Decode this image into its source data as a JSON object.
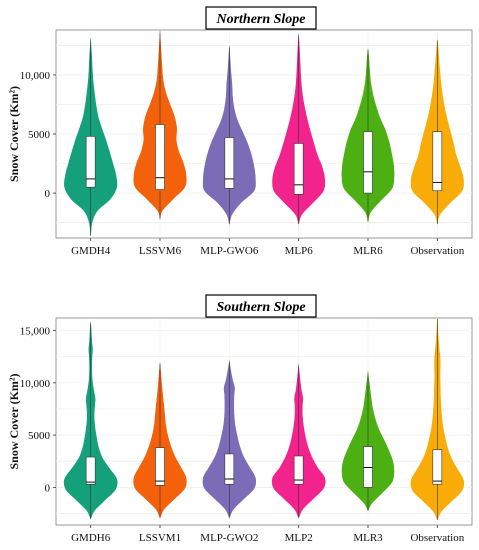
{
  "chart_data": [
    {
      "type": "violin",
      "title": "Northern Slope",
      "ylabel": "Snow Cover (Km²)",
      "ylim": [
        -3800,
        13800
      ],
      "yticks": [
        0,
        5000,
        10000
      ],
      "ytick_labels": [
        "0",
        "5000",
        "10,000"
      ],
      "grid": true,
      "categories": [
        "GMDH4",
        "LSSVM6",
        "MLP-GWO6",
        "MLP6",
        "MLR6",
        "Observation"
      ],
      "colors": [
        "#14a07a",
        "#f4610b",
        "#7b6cb8",
        "#f2238c",
        "#4caf12",
        "#f9ac08"
      ],
      "violins": [
        {
          "name": "GMDH4",
          "min": -3600,
          "max": 12900,
          "q1": 500,
          "median": 1200,
          "q3": 4800,
          "profile": [
            [
              -3600,
              0
            ],
            [
              -2500,
              0.05
            ],
            [
              -1500,
              0.25
            ],
            [
              -500,
              0.75
            ],
            [
              500,
              1.0
            ],
            [
              1500,
              0.97
            ],
            [
              2500,
              0.85
            ],
            [
              3500,
              0.72
            ],
            [
              4500,
              0.58
            ],
            [
              5500,
              0.42
            ],
            [
              6500,
              0.28
            ],
            [
              7500,
              0.2
            ],
            [
              8500,
              0.14
            ],
            [
              9500,
              0.09
            ],
            [
              10500,
              0.06
            ],
            [
              11500,
              0.04
            ],
            [
              12900,
              0
            ]
          ]
        },
        {
          "name": "LSSVM6",
          "min": -2200,
          "max": 13500,
          "q1": 300,
          "median": 1300,
          "q3": 5800,
          "profile": [
            [
              -2200,
              0
            ],
            [
              -1500,
              0.08
            ],
            [
              -500,
              0.5
            ],
            [
              500,
              0.95
            ],
            [
              1500,
              1.0
            ],
            [
              2500,
              0.9
            ],
            [
              3500,
              0.72
            ],
            [
              4500,
              0.62
            ],
            [
              5500,
              0.64
            ],
            [
              6500,
              0.55
            ],
            [
              7500,
              0.38
            ],
            [
              8500,
              0.22
            ],
            [
              9500,
              0.12
            ],
            [
              10500,
              0.08
            ],
            [
              11500,
              0.05
            ],
            [
              13500,
              0
            ]
          ]
        },
        {
          "name": "MLP-GWO6",
          "min": -2600,
          "max": 12300,
          "q1": 400,
          "median": 1200,
          "q3": 4700,
          "profile": [
            [
              -2600,
              0
            ],
            [
              -1800,
              0.1
            ],
            [
              -800,
              0.45
            ],
            [
              200,
              0.95
            ],
            [
              1200,
              1.0
            ],
            [
              2200,
              0.95
            ],
            [
              3200,
              0.85
            ],
            [
              4200,
              0.7
            ],
            [
              5200,
              0.5
            ],
            [
              6200,
              0.3
            ],
            [
              7200,
              0.18
            ],
            [
              8200,
              0.12
            ],
            [
              9200,
              0.1
            ],
            [
              10200,
              0.06
            ],
            [
              11200,
              0.03
            ],
            [
              12300,
              0
            ]
          ]
        },
        {
          "name": "MLP6",
          "min": -2600,
          "max": 13300,
          "q1": -100,
          "median": 700,
          "q3": 4200,
          "profile": [
            [
              -2600,
              0
            ],
            [
              -1800,
              0.12
            ],
            [
              -800,
              0.55
            ],
            [
              200,
              0.95
            ],
            [
              1200,
              1.0
            ],
            [
              2200,
              0.9
            ],
            [
              3200,
              0.72
            ],
            [
              4200,
              0.58
            ],
            [
              5200,
              0.45
            ],
            [
              6200,
              0.33
            ],
            [
              7200,
              0.23
            ],
            [
              8200,
              0.15
            ],
            [
              9200,
              0.1
            ],
            [
              10200,
              0.07
            ],
            [
              11200,
              0.05
            ],
            [
              12200,
              0.03
            ],
            [
              13300,
              0
            ]
          ]
        },
        {
          "name": "MLR6",
          "min": -2400,
          "max": 12100,
          "q1": 0,
          "median": 1800,
          "q3": 5200,
          "profile": [
            [
              -2400,
              0
            ],
            [
              -1600,
              0.1
            ],
            [
              -600,
              0.5
            ],
            [
              400,
              0.92
            ],
            [
              1400,
              1.0
            ],
            [
              2400,
              0.98
            ],
            [
              3400,
              0.9
            ],
            [
              4400,
              0.8
            ],
            [
              5400,
              0.65
            ],
            [
              6400,
              0.45
            ],
            [
              7400,
              0.3
            ],
            [
              8400,
              0.18
            ],
            [
              9400,
              0.1
            ],
            [
              10400,
              0.06
            ],
            [
              11400,
              0.03
            ],
            [
              12100,
              0
            ]
          ]
        },
        {
          "name": "Observation",
          "min": -2600,
          "max": 12900,
          "q1": 200,
          "median": 900,
          "q3": 5200,
          "profile": [
            [
              -2600,
              0
            ],
            [
              -1800,
              0.1
            ],
            [
              -800,
              0.5
            ],
            [
              200,
              0.95
            ],
            [
              1200,
              1.0
            ],
            [
              2200,
              0.88
            ],
            [
              3200,
              0.72
            ],
            [
              4200,
              0.62
            ],
            [
              5200,
              0.5
            ],
            [
              6200,
              0.38
            ],
            [
              7200,
              0.28
            ],
            [
              8200,
              0.2
            ],
            [
              9200,
              0.14
            ],
            [
              10200,
              0.1
            ],
            [
              11200,
              0.06
            ],
            [
              12200,
              0.03
            ],
            [
              12900,
              0
            ]
          ]
        }
      ]
    },
    {
      "type": "violin",
      "title": "Southern Slope",
      "ylabel": "Snow Cover (Km²)",
      "ylim": [
        -3600,
        16200
      ],
      "yticks": [
        0,
        5000,
        10000,
        15000
      ],
      "ytick_labels": [
        "0",
        "5000",
        "10,000",
        "15,000"
      ],
      "grid": true,
      "categories": [
        "GMDH6",
        "LSSVM1",
        "MLP-GWO2",
        "MLP2",
        "MLR3",
        "Observation"
      ],
      "colors": [
        "#14a07a",
        "#f4610b",
        "#7b6cb8",
        "#f2238c",
        "#4caf12",
        "#f9ac08"
      ],
      "violins": [
        {
          "name": "GMDH6",
          "min": -3000,
          "max": 15700,
          "q1": 300,
          "median": 500,
          "q3": 2900,
          "profile": [
            [
              -3000,
              0
            ],
            [
              -2200,
              0.15
            ],
            [
              -1200,
              0.55
            ],
            [
              -200,
              0.95
            ],
            [
              800,
              1.0
            ],
            [
              1800,
              0.72
            ],
            [
              2800,
              0.45
            ],
            [
              3800,
              0.3
            ],
            [
              4800,
              0.22
            ],
            [
              5800,
              0.16
            ],
            [
              6800,
              0.13
            ],
            [
              7800,
              0.15
            ],
            [
              8500,
              0.17
            ],
            [
              9500,
              0.1
            ],
            [
              10500,
              0.05
            ],
            [
              11500,
              0.04
            ],
            [
              12500,
              0.05
            ],
            [
              13200,
              0.07
            ],
            [
              14000,
              0.04
            ],
            [
              15000,
              0.02
            ],
            [
              15700,
              0
            ]
          ]
        },
        {
          "name": "LSSVM1",
          "min": -2900,
          "max": 11800,
          "q1": 200,
          "median": 600,
          "q3": 3800,
          "profile": [
            [
              -2900,
              0
            ],
            [
              -2100,
              0.15
            ],
            [
              -1100,
              0.55
            ],
            [
              -100,
              0.95
            ],
            [
              900,
              1.0
            ],
            [
              1900,
              0.8
            ],
            [
              2900,
              0.58
            ],
            [
              3900,
              0.42
            ],
            [
              4900,
              0.3
            ],
            [
              5900,
              0.22
            ],
            [
              6900,
              0.18
            ],
            [
              7900,
              0.14
            ],
            [
              8900,
              0.1
            ],
            [
              9900,
              0.06
            ],
            [
              10900,
              0.03
            ],
            [
              11800,
              0
            ]
          ]
        },
        {
          "name": "MLP-GWO2",
          "min": -2900,
          "max": 12000,
          "q1": 300,
          "median": 800,
          "q3": 3200,
          "profile": [
            [
              -2900,
              0
            ],
            [
              -2100,
              0.15
            ],
            [
              -1100,
              0.55
            ],
            [
              -100,
              0.95
            ],
            [
              900,
              1.0
            ],
            [
              1900,
              0.78
            ],
            [
              2900,
              0.55
            ],
            [
              3900,
              0.4
            ],
            [
              4900,
              0.3
            ],
            [
              5900,
              0.22
            ],
            [
              6900,
              0.18
            ],
            [
              7900,
              0.17
            ],
            [
              8900,
              0.18
            ],
            [
              9500,
              0.2
            ],
            [
              10300,
              0.12
            ],
            [
              11200,
              0.05
            ],
            [
              12000,
              0
            ]
          ]
        },
        {
          "name": "MLP2",
          "min": -2900,
          "max": 11600,
          "q1": 300,
          "median": 700,
          "q3": 3000,
          "profile": [
            [
              -2900,
              0
            ],
            [
              -2100,
              0.15
            ],
            [
              -1100,
              0.55
            ],
            [
              -100,
              0.95
            ],
            [
              900,
              1.0
            ],
            [
              1900,
              0.72
            ],
            [
              2900,
              0.5
            ],
            [
              3900,
              0.35
            ],
            [
              4900,
              0.25
            ],
            [
              5900,
              0.18
            ],
            [
              6900,
              0.14
            ],
            [
              7900,
              0.14
            ],
            [
              8500,
              0.16
            ],
            [
              9300,
              0.1
            ],
            [
              10300,
              0.05
            ],
            [
              11600,
              0
            ]
          ]
        },
        {
          "name": "MLR3",
          "min": -2200,
          "max": 10900,
          "q1": 0,
          "median": 1900,
          "q3": 3900,
          "profile": [
            [
              -2200,
              0
            ],
            [
              -1500,
              0.15
            ],
            [
              -500,
              0.55
            ],
            [
              500,
              0.92
            ],
            [
              1500,
              1.0
            ],
            [
              2500,
              0.95
            ],
            [
              3500,
              0.8
            ],
            [
              4500,
              0.62
            ],
            [
              5500,
              0.42
            ],
            [
              6500,
              0.28
            ],
            [
              7500,
              0.18
            ],
            [
              8500,
              0.12
            ],
            [
              9500,
              0.07
            ],
            [
              10900,
              0
            ]
          ]
        },
        {
          "name": "Observation",
          "min": -3100,
          "max": 16100,
          "q1": 300,
          "median": 600,
          "q3": 3600,
          "profile": [
            [
              -3100,
              0
            ],
            [
              -2300,
              0.15
            ],
            [
              -1300,
              0.55
            ],
            [
              -300,
              0.95
            ],
            [
              700,
              1.0
            ],
            [
              1700,
              0.78
            ],
            [
              2700,
              0.55
            ],
            [
              3700,
              0.4
            ],
            [
              4700,
              0.3
            ],
            [
              5700,
              0.22
            ],
            [
              6700,
              0.17
            ],
            [
              7700,
              0.14
            ],
            [
              8700,
              0.12
            ],
            [
              9700,
              0.11
            ],
            [
              10700,
              0.1
            ],
            [
              11700,
              0.11
            ],
            [
              12500,
              0.1
            ],
            [
              13500,
              0.06
            ],
            [
              14500,
              0.03
            ],
            [
              16100,
              0
            ]
          ]
        }
      ]
    }
  ]
}
